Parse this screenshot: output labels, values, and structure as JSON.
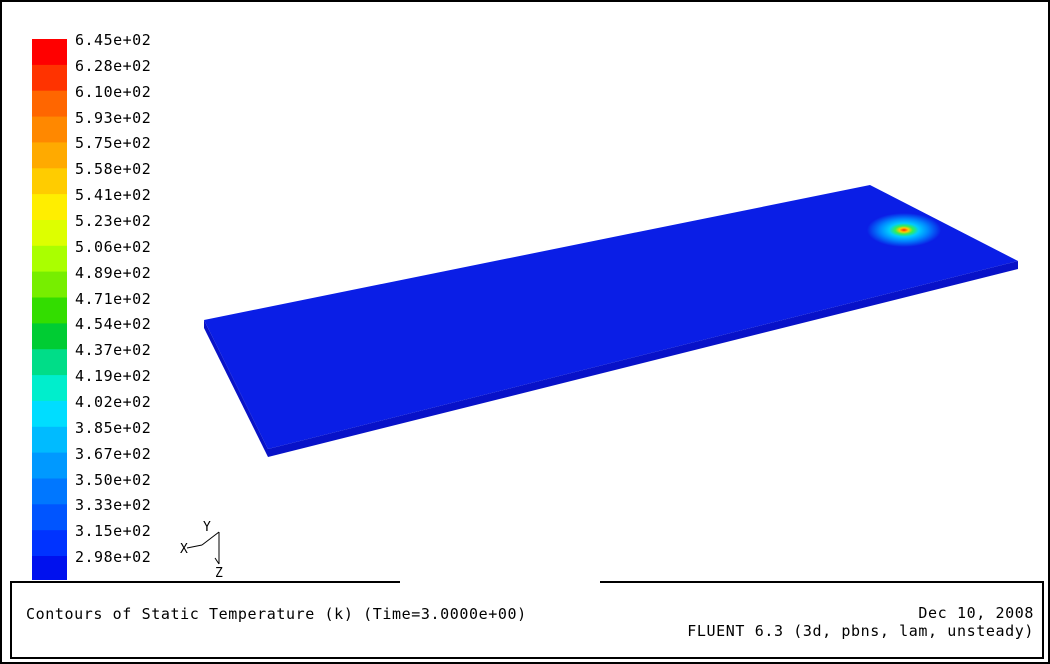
{
  "chart_data": {
    "type": "heatmap",
    "title": "Contours of Static Temperature (k)  (Time=3.0000e+00)",
    "quantity": "Static Temperature (k)",
    "time": "3.0000e+00",
    "colormap_levels": [
      "6.45e+02",
      "6.28e+02",
      "6.10e+02",
      "5.93e+02",
      "5.75e+02",
      "5.58e+02",
      "5.41e+02",
      "5.23e+02",
      "5.06e+02",
      "4.89e+02",
      "4.71e+02",
      "4.54e+02",
      "4.37e+02",
      "4.19e+02",
      "4.02e+02",
      "3.85e+02",
      "3.67e+02",
      "3.50e+02",
      "3.33e+02",
      "3.15e+02",
      "2.98e+02"
    ],
    "colormap_colors": [
      "#ff0000",
      "#ff3300",
      "#ff6600",
      "#ff8800",
      "#ffaa00",
      "#ffcc00",
      "#ffee00",
      "#ddff00",
      "#aaff00",
      "#77ee00",
      "#33dd00",
      "#00cc33",
      "#00dd88",
      "#00eecc",
      "#00ddff",
      "#00bbff",
      "#0099ff",
      "#0077ff",
      "#0055ff",
      "#0033ff",
      "#0011ee"
    ],
    "colorbar_display_labels": [
      "6.45e+02",
      "6.28e+02",
      "6.10e+02",
      "5.93e+02",
      "5.75e+02",
      "5.58e+02",
      "5.41e+02",
      "5.23e+02",
      "5.06e+02",
      "4.89e+02",
      "4.71e+02",
      "4.54e+02",
      "4.37e+02",
      "4.19e+02",
      "4.02e+02",
      "3.85e+02",
      "3.67e+02",
      "3.50e+02",
      "3.33e+02",
      "3.15e+02",
      "2.98e+02"
    ],
    "min": 298,
    "max": 645,
    "plate_color": "#0a1ee6",
    "hotspot_colors": [
      "#ff2200",
      "#ffcc00",
      "#33ee55",
      "#00ccff",
      "#0088ff",
      "#0a1ee6"
    ]
  },
  "axes_triad": {
    "x": "X",
    "y": "Y",
    "z": "Z"
  },
  "footer": {
    "title": "Contours of Static Temperature (k)  (Time=3.0000e+00)",
    "date": "Dec 10, 2008",
    "solver": "FLUENT 6.3 (3d, pbns, lam, unsteady)"
  }
}
